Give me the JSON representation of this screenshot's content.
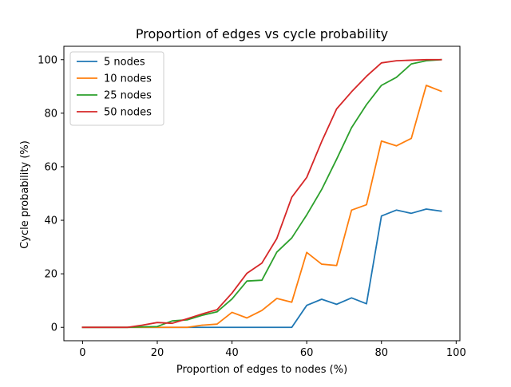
{
  "chart_data": {
    "type": "line",
    "title": "Proportion of edges vs cycle probability",
    "xlabel": "Proportion of edges to nodes (%)",
    "ylabel": "Cycle probability (%)",
    "xlim": [
      -5,
      101
    ],
    "ylim": [
      -5,
      105
    ],
    "xticks": [
      0,
      20,
      40,
      60,
      80,
      100
    ],
    "yticks": [
      0,
      20,
      40,
      60,
      80,
      100
    ],
    "grid": false,
    "legend_position": "top-left",
    "x": [
      0,
      4,
      8,
      12,
      16,
      20,
      24,
      28,
      32,
      36,
      40,
      44,
      48,
      52,
      56,
      60,
      64,
      68,
      72,
      76,
      80,
      84,
      88,
      92,
      96
    ],
    "series": [
      {
        "name": "5 nodes",
        "color": "#1f77b4",
        "values": [
          0,
          0,
          0,
          0,
          0,
          0,
          0,
          0,
          0,
          0,
          0,
          0,
          0,
          0,
          0,
          8.2,
          10.5,
          8.6,
          11.0,
          8.8,
          41.6,
          43.8,
          42.6,
          44.2,
          43.4
        ]
      },
      {
        "name": "10 nodes",
        "color": "#ff7f0e",
        "values": [
          0,
          0,
          0,
          0,
          0,
          0,
          0,
          0,
          0.8,
          1.2,
          5.6,
          3.5,
          6.3,
          10.8,
          9.4,
          28.0,
          23.6,
          23.1,
          43.8,
          45.8,
          69.6,
          67.8,
          70.6,
          90.4,
          88.2
        ]
      },
      {
        "name": "25 nodes",
        "color": "#2ca02c",
        "values": [
          0,
          0,
          0,
          0,
          0.2,
          0.3,
          2.4,
          2.8,
          4.5,
          5.8,
          10.6,
          17.3,
          17.6,
          28.1,
          33.4,
          42.0,
          51.5,
          62.8,
          74.6,
          83.2,
          90.4,
          93.4,
          98.4,
          99.6,
          100
        ]
      },
      {
        "name": "50 nodes",
        "color": "#d62728",
        "values": [
          0,
          0,
          0,
          0,
          0.8,
          1.8,
          1.5,
          3.2,
          5.0,
          6.6,
          12.8,
          20.2,
          24.0,
          33.2,
          48.6,
          56.0,
          69.4,
          81.6,
          88.0,
          93.8,
          98.8,
          99.6,
          99.8,
          100,
          100
        ]
      }
    ]
  }
}
